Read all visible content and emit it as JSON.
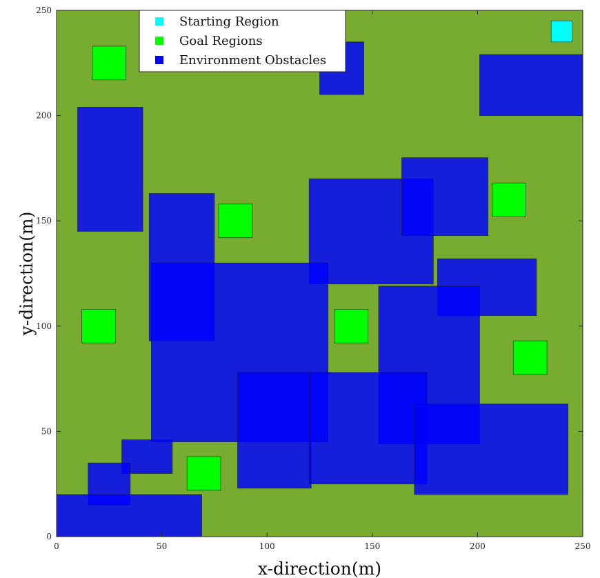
{
  "chart_data": {
    "type": "region-map",
    "title": "",
    "xlabel": "x-direction(m)",
    "ylabel": "y-direction(m)",
    "xlim": [
      0,
      250
    ],
    "ylim": [
      0,
      250
    ],
    "xticks": [
      "0",
      "50",
      "100",
      "150",
      "200",
      "250"
    ],
    "yticks": [
      "0",
      "50",
      "100",
      "150",
      "200",
      "250"
    ],
    "grid": false,
    "background_color": "#77ac30",
    "legend_position": "top-center",
    "legend": [
      {
        "label": "Starting Region",
        "color": "#00ffff"
      },
      {
        "label": "Goal Regions",
        "color": "#00ff00"
      },
      {
        "label": "Environment Obstacles",
        "color": "#0000ff"
      }
    ],
    "colors": {
      "start": "#00ffff",
      "goal": "#00ff00",
      "obstacle": "#0000ff"
    },
    "starting_region": [
      {
        "x0": 235,
        "x1": 245,
        "y0": 235,
        "y1": 245
      }
    ],
    "goal_regions": [
      {
        "x0": 17,
        "x1": 33,
        "y0": 217,
        "y1": 233
      },
      {
        "x0": 77,
        "x1": 93,
        "y0": 142,
        "y1": 158
      },
      {
        "x0": 12,
        "x1": 28,
        "y0": 92,
        "y1": 108
      },
      {
        "x0": 132,
        "x1": 148,
        "y0": 92,
        "y1": 108
      },
      {
        "x0": 207,
        "x1": 223,
        "y0": 152,
        "y1": 168
      },
      {
        "x0": 217,
        "x1": 233,
        "y0": 77,
        "y1": 93
      },
      {
        "x0": 62,
        "x1": 78,
        "y0": 22,
        "y1": 38
      }
    ],
    "obstacles": [
      {
        "x0": 10,
        "x1": 41,
        "y0": 145,
        "y1": 204
      },
      {
        "x0": 125,
        "x1": 146,
        "y0": 210,
        "y1": 235
      },
      {
        "x0": 201,
        "x1": 250,
        "y0": 200,
        "y1": 229
      },
      {
        "x0": 44,
        "x1": 75,
        "y0": 93,
        "y1": 163
      },
      {
        "x0": 120,
        "x1": 179,
        "y0": 120,
        "y1": 170
      },
      {
        "x0": 164,
        "x1": 205,
        "y0": 143,
        "y1": 180
      },
      {
        "x0": 181,
        "x1": 228,
        "y0": 105,
        "y1": 132
      },
      {
        "x0": 45,
        "x1": 129,
        "y0": 45,
        "y1": 130
      },
      {
        "x0": 153,
        "x1": 201,
        "y0": 44,
        "y1": 119
      },
      {
        "x0": 86,
        "x1": 121,
        "y0": 23,
        "y1": 78
      },
      {
        "x0": 120,
        "x1": 176,
        "y0": 25,
        "y1": 78
      },
      {
        "x0": 170,
        "x1": 243,
        "y0": 20,
        "y1": 63
      },
      {
        "x0": 31,
        "x1": 55,
        "y0": 30,
        "y1": 46
      },
      {
        "x0": 15,
        "x1": 35,
        "y0": 15,
        "y1": 35
      },
      {
        "x0": 0,
        "x1": 69,
        "y0": 0,
        "y1": 20
      }
    ]
  }
}
